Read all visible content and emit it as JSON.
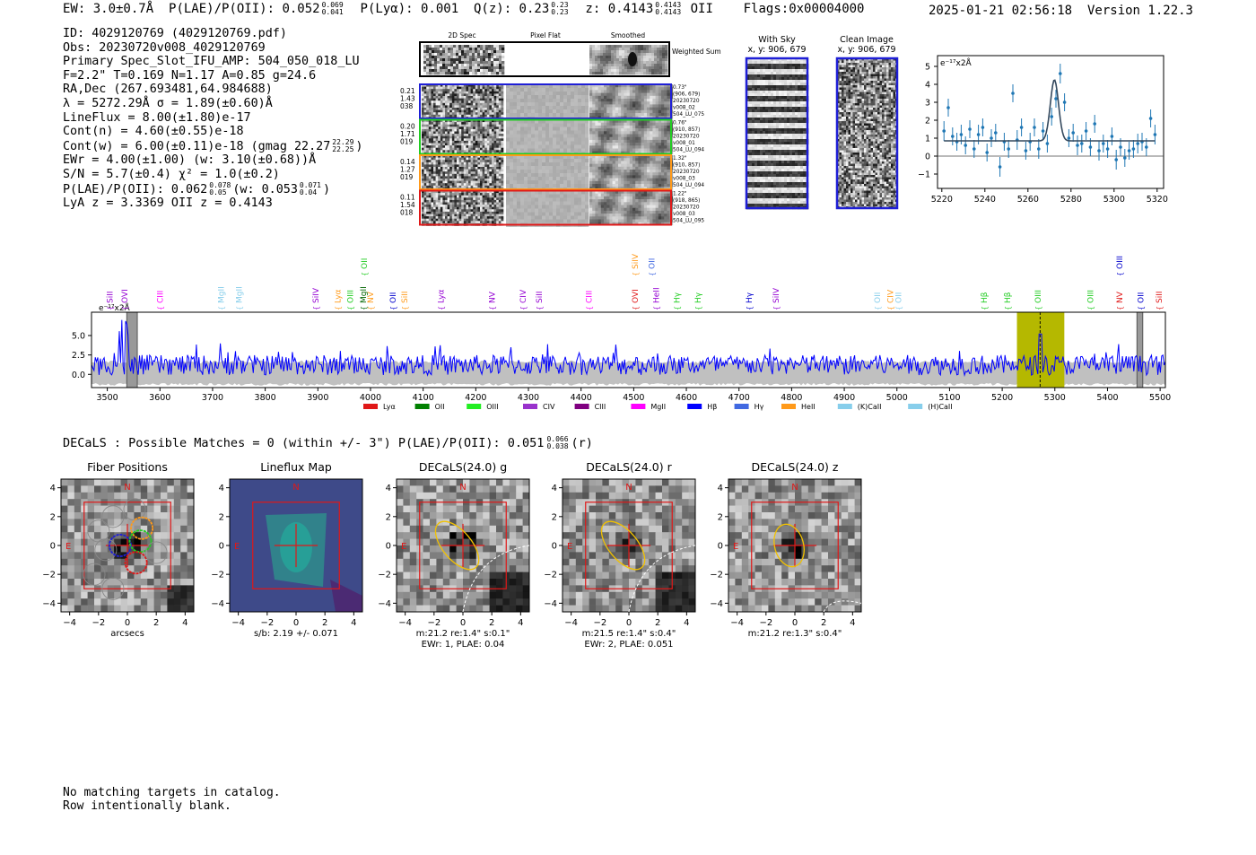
{
  "header": {
    "ew": "EW: 3.0±0.7Å",
    "plae": "P(LAE)/P(OII): 0.052",
    "plae_hi": "0.069",
    "plae_lo": "0.041",
    "plya": "P(Lyα): 0.001",
    "q": "Q(z): 0.23",
    "q_hi": "0.23",
    "q_lo": "0.23",
    "z": "z: 0.4143",
    "z_hi": "0.4143",
    "z_lo": "0.4143",
    "z_line": "OII",
    "flags": "Flags:0x00004000",
    "datetime": "2025-01-21 02:56:18",
    "version": "Version 1.22.3"
  },
  "info": {
    "id": "ID: 4029120769 (4029120769.pdf)",
    "obs": "Obs: 20230720v008_4029120769",
    "primary": "Primary Spec_Slot_IFU_AMP: 504_050_018_LU",
    "f_line": "F=2.2\"  T=0.169  N=1.17  A=0.85  g=24.6",
    "radec": "RA,Dec (267.693481,64.984688)",
    "lambda": "λ = 5272.29Å  σ = 1.89(±0.60)Å",
    "lineflux": "LineFlux = 8.00(±1.80)e-17",
    "contn": "Cont(n) = 4.60(±0.55)e-18",
    "contw": "Cont(w) = 6.00(±0.11)e-18 (gmag 22.27",
    "contw_hi": "22.29",
    "contw_lo": "22.25",
    "contw_end": ")",
    "ewr": "EWr = 4.00(±1.00) (w: 3.10(±0.68))Å",
    "sn": "S/N = 5.7(±0.4)  χ² = 1.0(±0.2)",
    "plae2": "P(LAE)/P(OII): 0.062",
    "plae2_hi": "0.078",
    "plae2_lo": "0.05",
    "plae2_w": "(w: 0.053",
    "plae2_w_hi": "0.071",
    "plae2_w_lo": "0.04",
    "plae2_end": ")",
    "lya": "LyA z = 3.3369  OII z = 0.4143"
  },
  "cutouts": {
    "col_2d": "2D Spec",
    "col_flat": "Pixel Flat",
    "col_smooth": "Smoothed",
    "weighted_sum": "Weighted Sum",
    "rows": [
      {
        "l1": "0.21",
        "l2": "1.43",
        "l3": "038",
        "n1": "0.73\"",
        "n2": "(906, 679)",
        "n3": "20230720",
        "n4": "v008_02",
        "n5": "504_LU_075",
        "color": "#1f1fd6"
      },
      {
        "l1": "0.20",
        "l2": "1.71",
        "l3": "019",
        "n1": "0.76\"",
        "n2": "(910, 857)",
        "n3": "20230720",
        "n4": "v008_01",
        "n5": "504_LU_094",
        "color": "#22cc22"
      },
      {
        "l1": "0.14",
        "l2": "1.27",
        "l3": "019",
        "n1": "1.32\"",
        "n2": "(910, 857)",
        "n3": "20230720",
        "n4": "v008_03",
        "n5": "504_LU_094",
        "color": "#ff9a1a"
      },
      {
        "l1": "0.11",
        "l2": "1.54",
        "l3": "018",
        "n1": "1.22\"",
        "n2": "(918, 865)",
        "n3": "20230720",
        "n4": "v008_03",
        "n5": "504_LU_095",
        "color": "#e01818"
      }
    ],
    "with_sky": "With Sky",
    "clean_image": "Clean Image",
    "xy_sky": "x, y: 906, 679",
    "xy_clean": "x, y: 906, 679"
  },
  "colors": {
    "blue": "#1f1fd6",
    "green": "#22cc22",
    "orange": "#ff9a1a",
    "red": "#e01818",
    "olive": "#b5b800",
    "spec": "#0000ff",
    "zoom": "#1f77b4"
  },
  "chart_data": [
    {
      "type": "scatter",
      "name": "zoom-spectrum",
      "ylabel": "e⁻¹⁷x2Å",
      "xlim": [
        5218,
        5323
      ],
      "ylim": [
        -1.8,
        5.6
      ],
      "xticks": [
        5220,
        5240,
        5260,
        5280,
        5300,
        5320
      ],
      "yticks": [
        -1,
        0,
        1,
        2,
        3,
        4,
        5
      ],
      "x": [
        5221,
        5223,
        5225,
        5227,
        5229,
        5231,
        5233,
        5235,
        5237,
        5239,
        5241,
        5243,
        5245,
        5247,
        5249,
        5251,
        5253,
        5255,
        5257,
        5259,
        5261,
        5263,
        5265,
        5267,
        5269,
        5271,
        5273,
        5275,
        5277,
        5279,
        5281,
        5283,
        5285,
        5287,
        5289,
        5291,
        5293,
        5295,
        5297,
        5299,
        5301,
        5303,
        5305,
        5307,
        5309,
        5311,
        5313,
        5315,
        5317,
        5319
      ],
      "y": [
        1.4,
        2.7,
        1.1,
        0.8,
        1.2,
        0.6,
        1.5,
        0.4,
        1.2,
        1.6,
        0.2,
        1.0,
        1.3,
        -0.6,
        0.8,
        0.4,
        3.5,
        0.9,
        1.6,
        0.3,
        0.8,
        1.6,
        0.4,
        1.4,
        0.7,
        2.2,
        3.2,
        4.6,
        3.0,
        1.0,
        1.3,
        0.6,
        0.7,
        1.4,
        0.5,
        1.8,
        0.3,
        0.7,
        0.4,
        1.1,
        -0.2,
        0.5,
        -0.1,
        0.3,
        0.4,
        0.7,
        0.8,
        0.5,
        2.1,
        1.2
      ],
      "err": [
        0.55,
        0.5,
        0.5,
        0.5,
        0.55,
        0.5,
        0.5,
        0.5,
        0.55,
        0.5,
        0.5,
        0.5,
        0.5,
        0.55,
        0.5,
        0.5,
        0.5,
        0.55,
        0.5,
        0.5,
        0.5,
        0.5,
        0.55,
        0.5,
        0.5,
        0.5,
        0.5,
        0.55,
        0.5,
        0.5,
        0.5,
        0.55,
        0.5,
        0.5,
        0.5,
        0.5,
        0.55,
        0.5,
        0.5,
        0.5,
        0.55,
        0.5,
        0.5,
        0.5,
        0.5,
        0.55,
        0.5,
        0.5,
        0.5,
        0.55
      ],
      "fit": {
        "center": 5272.3,
        "sigma": 1.9,
        "amplitude": 3.4,
        "continuum": 0.85
      }
    },
    {
      "type": "line",
      "name": "full-spectrum",
      "ylabel": "e⁻¹⁷x2Å",
      "xlim": [
        3470,
        5510
      ],
      "ylim": [
        -1.7,
        8.0
      ],
      "xticks": [
        3500,
        3600,
        3700,
        3800,
        3900,
        4000,
        4100,
        4200,
        4300,
        4400,
        4500,
        4600,
        4700,
        4800,
        4900,
        5000,
        5100,
        5200,
        5300,
        5400,
        5500
      ],
      "yticks": [
        0.0,
        2.5,
        5.0
      ],
      "ytick_labels": [
        "0.0",
        "2.5",
        "5.0"
      ],
      "band_x": [
        5228,
        5318
      ],
      "band_center": 5272,
      "mask_regions": [
        [
          3537,
          3557
        ],
        [
          5456,
          5467
        ]
      ],
      "line_labels": [
        {
          "x": 3505,
          "label": "SiII",
          "color": "#9400d3",
          "tier": 0
        },
        {
          "x": 3533,
          "label": "OVI",
          "color": "#9400d3",
          "tier": 0
        },
        {
          "x": 3600,
          "label": "CIII",
          "color": "#ff00ff",
          "tier": 0
        },
        {
          "x": 3716,
          "label": "MgII",
          "color": "#87ceeb",
          "tier": 0
        },
        {
          "x": 3750,
          "label": "MgII",
          "color": "#87ceeb",
          "tier": 0
        },
        {
          "x": 3896,
          "label": "SiIV",
          "color": "#9400d3",
          "tier": 0
        },
        {
          "x": 3938,
          "label": "Lyα",
          "color": "#ff9a1a",
          "tier": 0
        },
        {
          "x": 3962,
          "label": "OIII",
          "color": "#22cc22",
          "tier": 0
        },
        {
          "x": 3986,
          "label": "MgII",
          "color": "#006400",
          "tier": 0
        },
        {
          "x": 3988,
          "label": "OII",
          "color": "#22cc22",
          "tier": 1
        },
        {
          "x": 4000,
          "label": "NV",
          "color": "#ff9a1a",
          "tier": 0
        },
        {
          "x": 4043,
          "label": "OII",
          "color": "#0000cd",
          "tier": 0
        },
        {
          "x": 4065,
          "label": "SiII",
          "color": "#ff9a1a",
          "tier": 0
        },
        {
          "x": 4134,
          "label": "Lyα",
          "color": "#9400d3",
          "tier": 0
        },
        {
          "x": 4231,
          "label": "NV",
          "color": "#9400d3",
          "tier": 0
        },
        {
          "x": 4290,
          "label": "CIV",
          "color": "#9400d3",
          "tier": 0
        },
        {
          "x": 4320,
          "label": "SiII",
          "color": "#9400d3",
          "tier": 0
        },
        {
          "x": 4415,
          "label": "CIII",
          "color": "#ff00ff",
          "tier": 0
        },
        {
          "x": 4503,
          "label": "OVI",
          "color": "#e01818",
          "tier": 0
        },
        {
          "x": 4503,
          "label": "SiIV",
          "color": "#ff9a1a",
          "tier": 1
        },
        {
          "x": 4534,
          "label": "OII",
          "color": "#4169e1",
          "tier": 1
        },
        {
          "x": 4543,
          "label": "HeII",
          "color": "#9400d3",
          "tier": 0
        },
        {
          "x": 4582,
          "label": "Hγ",
          "color": "#22cc22",
          "tier": 0
        },
        {
          "x": 4622,
          "label": "Hγ",
          "color": "#22cc22",
          "tier": 0
        },
        {
          "x": 4719,
          "label": "Hγ",
          "color": "#0000cd",
          "tier": 0
        },
        {
          "x": 4770,
          "label": "SiIV",
          "color": "#9400d3",
          "tier": 0
        },
        {
          "x": 4963,
          "label": "OII",
          "color": "#87ceeb",
          "tier": 0
        },
        {
          "x": 4988,
          "label": "CIV",
          "color": "#ff9a1a",
          "tier": 0
        },
        {
          "x": 5003,
          "label": "OII",
          "color": "#87ceeb",
          "tier": 0
        },
        {
          "x": 5166,
          "label": "Hβ",
          "color": "#22cc22",
          "tier": 0
        },
        {
          "x": 5210,
          "label": "Hβ",
          "color": "#22cc22",
          "tier": 0
        },
        {
          "x": 5268,
          "label": "OIII",
          "color": "#22cc22",
          "tier": 0
        },
        {
          "x": 5368,
          "label": "OIII",
          "color": "#22cc22",
          "tier": 0
        },
        {
          "x": 5423,
          "label": "NV",
          "color": "#e01818",
          "tier": 0
        },
        {
          "x": 5423,
          "label": "OIII",
          "color": "#0000cd",
          "tier": 1
        },
        {
          "x": 5463,
          "label": "OII",
          "color": "#0000cd",
          "tier": 0
        },
        {
          "x": 5498,
          "label": "SiII",
          "color": "#e01818",
          "tier": 0
        }
      ],
      "legend": [
        {
          "label": "Lyα",
          "color": "#e01818"
        },
        {
          "label": "OII",
          "color": "#008000"
        },
        {
          "label": "OIII",
          "color": "#22ee22"
        },
        {
          "label": "CIV",
          "color": "#9932cc"
        },
        {
          "label": "CIII",
          "color": "#800080"
        },
        {
          "label": "MgII",
          "color": "#ff00ff"
        },
        {
          "label": "Hβ",
          "color": "#0000ff"
        },
        {
          "label": "Hγ",
          "color": "#4169e1"
        },
        {
          "label": "HeII",
          "color": "#ff9a1a"
        },
        {
          "label": "(K)CaII",
          "color": "#87ceeb"
        },
        {
          "label": "(H)CaII",
          "color": "#87ceeb"
        }
      ]
    }
  ],
  "decals": {
    "title": "DECaLS : Possible Matches = 0 (within +/- 3\")  P(LAE)/P(OII): 0.051",
    "title_hi": "0.066",
    "title_lo": "0.038",
    "title_band": "(r)",
    "ticks": [
      "−4",
      "−2",
      "0",
      "2",
      "4"
    ],
    "yticks": [
      "4",
      "2",
      "0",
      "−2",
      "−4"
    ],
    "n_label": "N",
    "e_label": "E",
    "panels": [
      {
        "title": "Fiber Positions",
        "note1": "arcsecs",
        "note2": ""
      },
      {
        "title": "Lineflux Map",
        "note1": "s/b: 2.19 +/- 0.071",
        "note2": ""
      },
      {
        "title": "DECaLS(24.0) g",
        "note1": "m:21.2  re:1.4\"  s:0.1\"",
        "note2": "EWr: 1, PLAE: 0.04"
      },
      {
        "title": "DECaLS(24.0) r",
        "note1": "m:21.5  re:1.4\"  s:0.4\"",
        "note2": "EWr: 2, PLAE: 0.051"
      },
      {
        "title": "DECaLS(24.0) z",
        "note1": "m:21.2  re:1.3\"  s:0.4\"",
        "note2": ""
      }
    ]
  },
  "footer": {
    "line1": "No matching targets in catalog.",
    "line2": "Row intentionally blank."
  }
}
